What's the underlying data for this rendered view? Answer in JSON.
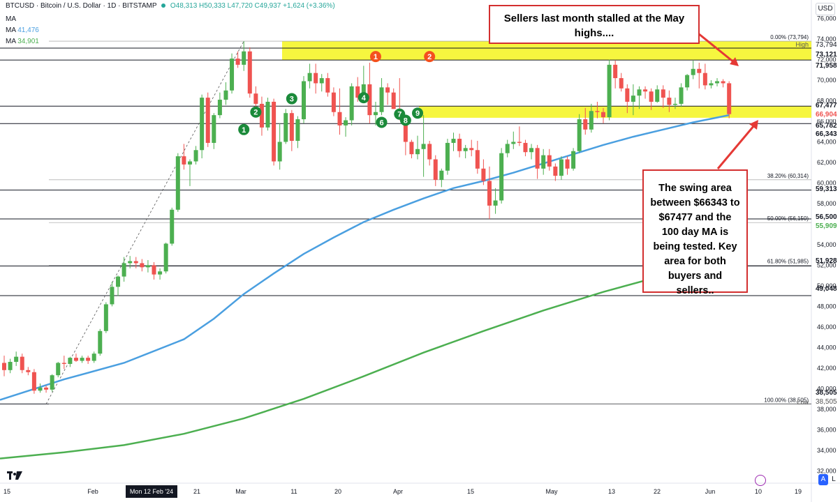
{
  "header": {
    "symbol_line": "BTCUSD · Bitcoin / U.S. Dollar · 1D · BITSTAMP",
    "ohlc": "O48,313 H50,333 L47,720 C49,937 +1,624 (+3.36%)",
    "ma_line": "MA",
    "ma1_label": "MA",
    "ma1_value": "41,476",
    "ma2_label": "MA",
    "ma2_value": "34,901",
    "currency": "USD"
  },
  "annotations": {
    "top_box": "Sellers last month stalled at the May highs....",
    "swing_box": "The swing area between $66343 to $67477 and the 100 day MA is being tested.  Key area for both buyers and sellers.."
  },
  "colors": {
    "up": "#4caf50",
    "down": "#ef5350",
    "ma100": "#4a9fe0",
    "ma200": "#4caf50",
    "zone": "#f5f52a",
    "arrow": "#e53935"
  },
  "chart_data": {
    "type": "candlestick",
    "x_ticks": [
      "15",
      "Feb",
      "Mon 12 Feb '24",
      "21",
      "Mar",
      "11",
      "20",
      "Apr",
      "15",
      "May",
      "13",
      "22",
      "Jun",
      "10",
      "19"
    ],
    "y_ticks": [
      "76,000",
      "74,000",
      "72,000",
      "70,000",
      "68,000",
      "66,000",
      "64,000",
      "62,000",
      "60,000",
      "58,000",
      "56,000",
      "54,000",
      "52,000",
      "50,000",
      "48,000",
      "46,000",
      "44,000",
      "42,000",
      "40,000",
      "38,000",
      "36,000",
      "34,000",
      "32,000"
    ],
    "ylim": [
      30800,
      77800
    ],
    "price_levels": [
      {
        "label": "73,121",
        "value": 73121
      },
      {
        "label": "71,958",
        "value": 71958
      },
      {
        "label": "67,477",
        "value": 67477
      },
      {
        "label": "66,904",
        "value": 66904
      },
      {
        "label": "65,782",
        "value": 65782
      },
      {
        "label": "66,343",
        "value": 66343
      },
      {
        "label": "59,313",
        "value": 59313
      },
      {
        "label": "56,500",
        "value": 56500
      },
      {
        "label": "55,909",
        "value": 55909
      },
      {
        "label": "51,928",
        "value": 51928
      },
      {
        "label": "49,048",
        "value": 49048
      },
      {
        "label": "38,505",
        "value": 38505
      },
      {
        "label": "73,794",
        "value": 73794
      },
      {
        "label": "38,505",
        "value": 38505
      }
    ],
    "high_label": "High",
    "low_label": "Low",
    "fib_levels": [
      {
        "label": "0.00% (73,794)",
        "value": 73794
      },
      {
        "label": "38.20% (60,314)",
        "value": 60314
      },
      {
        "label": "50.00% (56,150)",
        "value": 56150
      },
      {
        "label": "61.80% (51,985)",
        "value": 51985
      },
      {
        "label": "100.00% (38,505)",
        "value": 38505
      }
    ],
    "zones": [
      {
        "from_day": 25,
        "to_day": 49,
        "low": 71958,
        "high": 73794
      },
      {
        "from_day": 31,
        "to_day": 60,
        "low": 66343,
        "high": 67477
      }
    ],
    "markers": [
      {
        "label": "1",
        "day": 40,
        "value": 65200,
        "color": "green"
      },
      {
        "label": "2",
        "day": 42,
        "value": 66900,
        "color": "green"
      },
      {
        "label": "3",
        "day": 48,
        "value": 68200,
        "color": "green"
      },
      {
        "label": "4",
        "day": 60,
        "value": 68300,
        "color": "green"
      },
      {
        "label": "1",
        "day": 62,
        "value": 72300,
        "color": "red"
      },
      {
        "label": "6",
        "day": 63,
        "value": 65900,
        "color": "green"
      },
      {
        "label": "7",
        "day": 66,
        "value": 66700,
        "color": "green"
      },
      {
        "label": "8",
        "day": 67,
        "value": 66100,
        "color": "green"
      },
      {
        "label": "9",
        "day": 69,
        "value": 66800,
        "color": "green"
      },
      {
        "label": "2",
        "day": 71,
        "value": 72300,
        "color": "red"
      }
    ],
    "ohlc": [
      [
        42500,
        43200,
        41200,
        41800
      ],
      [
        41800,
        42900,
        41500,
        42600
      ],
      [
        42600,
        43600,
        42200,
        43100
      ],
      [
        43100,
        43400,
        41500,
        41800
      ],
      [
        41800,
        42100,
        41300,
        41600
      ],
      [
        41600,
        41900,
        39500,
        39800
      ],
      [
        39800,
        40500,
        39600,
        40100
      ],
      [
        40100,
        40300,
        39600,
        39900
      ],
      [
        39900,
        41400,
        39700,
        41300
      ],
      [
        41300,
        42600,
        41100,
        42500
      ],
      [
        42500,
        43200,
        41900,
        42400
      ],
      [
        42400,
        43100,
        42100,
        43000
      ],
      [
        43000,
        43400,
        42600,
        42700
      ],
      [
        42700,
        43200,
        42500,
        43000
      ],
      [
        43000,
        43200,
        42400,
        42700
      ],
      [
        42700,
        43600,
        42500,
        43400
      ],
      [
        43400,
        45800,
        43200,
        45600
      ],
      [
        45600,
        48400,
        45400,
        48200
      ],
      [
        48200,
        50400,
        48000,
        49900
      ],
      [
        49900,
        51000,
        49000,
        50900
      ],
      [
        50900,
        52800,
        50400,
        52200
      ],
      [
        52200,
        52900,
        51700,
        52400
      ],
      [
        52400,
        52800,
        51700,
        52200
      ],
      [
        52200,
        52600,
        51400,
        51800
      ],
      [
        51800,
        52500,
        51300,
        52000
      ],
      [
        52000,
        52300,
        50600,
        51100
      ],
      [
        51100,
        51700,
        50600,
        51400
      ],
      [
        51400,
        54200,
        51200,
        54100
      ],
      [
        54100,
        57600,
        53900,
        57400
      ],
      [
        57400,
        62900,
        57200,
        62600
      ],
      [
        62600,
        63800,
        61300,
        61800
      ],
      [
        61800,
        62300,
        59700,
        62100
      ],
      [
        62100,
        63600,
        61800,
        63200
      ],
      [
        63200,
        68600,
        62400,
        68300
      ],
      [
        68300,
        68800,
        63500,
        63900
      ],
      [
        63900,
        66800,
        63300,
        66600
      ],
      [
        66600,
        68800,
        66300,
        68100
      ],
      [
        68100,
        69800,
        67600,
        69000
      ],
      [
        69000,
        72600,
        68700,
        72100
      ],
      [
        72100,
        72800,
        71200,
        71500
      ],
      [
        71500,
        73794,
        70900,
        72800
      ],
      [
        72800,
        73200,
        68300,
        68700
      ],
      [
        68700,
        69400,
        66500,
        67700
      ],
      [
        67700,
        68400,
        64600,
        65400
      ],
      [
        65400,
        68300,
        65100,
        67900
      ],
      [
        67900,
        68200,
        61700,
        62100
      ],
      [
        62100,
        65800,
        61300,
        64000
      ],
      [
        64000,
        67200,
        63800,
        66800
      ],
      [
        66800,
        67100,
        63100,
        64100
      ],
      [
        64100,
        66500,
        63400,
        66200
      ],
      [
        66200,
        70400,
        65800,
        69900
      ],
      [
        69900,
        71600,
        69200,
        70700
      ],
      [
        70700,
        71600,
        68700,
        69700
      ],
      [
        69700,
        70600,
        68900,
        70200
      ],
      [
        70200,
        70700,
        68400,
        68800
      ],
      [
        68800,
        69300,
        66500,
        66900
      ],
      [
        66900,
        69200,
        64700,
        65600
      ],
      [
        65600,
        66400,
        64500,
        66100
      ],
      [
        66100,
        69700,
        65600,
        69400
      ],
      [
        69400,
        70300,
        67900,
        68300
      ],
      [
        68300,
        71400,
        68000,
        69600
      ],
      [
        69600,
        71700,
        65800,
        66600
      ],
      [
        66600,
        67900,
        65600,
        66900
      ],
      [
        66900,
        70200,
        66600,
        69300
      ],
      [
        69300,
        69700,
        67600,
        68800
      ],
      [
        68800,
        69200,
        67200,
        67200
      ],
      [
        67200,
        70200,
        66100,
        66200
      ],
      [
        66200,
        66500,
        62700,
        64000
      ],
      [
        64000,
        64200,
        62400,
        62800
      ],
      [
        62800,
        64600,
        62300,
        63300
      ],
      [
        63300,
        66600,
        60600,
        63800
      ],
      [
        63800,
        64100,
        61700,
        62300
      ],
      [
        62300,
        62700,
        59700,
        60300
      ],
      [
        60300,
        61400,
        59600,
        61200
      ],
      [
        61200,
        64300,
        60800,
        63900
      ],
      [
        63900,
        64900,
        63100,
        64300
      ],
      [
        64300,
        64800,
        62500,
        63100
      ],
      [
        63100,
        63700,
        62400,
        63400
      ],
      [
        63400,
        64200,
        62600,
        63200
      ],
      [
        63200,
        64100,
        60900,
        61400
      ],
      [
        61400,
        62300,
        59800,
        60200
      ],
      [
        60200,
        61600,
        56500,
        57800
      ],
      [
        57800,
        59500,
        57000,
        58300
      ],
      [
        58300,
        63400,
        58000,
        62900
      ],
      [
        62900,
        64200,
        62500,
        63800
      ],
      [
        63800,
        65000,
        63300,
        64000
      ],
      [
        64000,
        65500,
        63600,
        63900
      ],
      [
        63900,
        64200,
        62600,
        63000
      ],
      [
        63000,
        63800,
        62300,
        63400
      ],
      [
        63400,
        63700,
        60400,
        61400
      ],
      [
        61400,
        63300,
        60800,
        62700
      ],
      [
        62700,
        63300,
        61200,
        61600
      ],
      [
        61600,
        61900,
        60200,
        60700
      ],
      [
        60700,
        62600,
        60300,
        62300
      ],
      [
        62300,
        62600,
        60800,
        61400
      ],
      [
        61400,
        63400,
        61200,
        63100
      ],
      [
        63100,
        66700,
        62900,
        66200
      ],
      [
        66200,
        67300,
        64700,
        65200
      ],
      [
        65200,
        67700,
        64900,
        67000
      ],
      [
        67000,
        67900,
        66300,
        66900
      ],
      [
        66900,
        67300,
        65800,
        66400
      ],
      [
        66400,
        72000,
        66100,
        71500
      ],
      [
        71500,
        71900,
        69200,
        70200
      ],
      [
        70200,
        70700,
        68900,
        69200
      ],
      [
        69200,
        69600,
        66800,
        67900
      ],
      [
        67900,
        69600,
        66600,
        68500
      ],
      [
        68500,
        69400,
        67200,
        69100
      ],
      [
        69100,
        69400,
        68200,
        68900
      ],
      [
        68900,
        69200,
        67100,
        67900
      ],
      [
        67900,
        69500,
        67800,
        69100
      ],
      [
        69100,
        69500,
        67300,
        68300
      ],
      [
        68300,
        69000,
        66900,
        67600
      ],
      [
        67600,
        68300,
        67200,
        67700
      ],
      [
        67700,
        69700,
        67400,
        69300
      ],
      [
        69300,
        70600,
        69000,
        70500
      ],
      [
        70500,
        71900,
        70100,
        71100
      ],
      [
        71100,
        71700,
        69200,
        70700
      ],
      [
        70700,
        71600,
        69100,
        69500
      ],
      [
        69500,
        70000,
        69200,
        69700
      ],
      [
        69700,
        70200,
        69400,
        69900
      ],
      [
        69900,
        70100,
        69300,
        69700
      ],
      [
        69700,
        69900,
        66300,
        66700
      ]
    ],
    "ma100": [
      [
        0,
        38900
      ],
      [
        10,
        40900
      ],
      [
        20,
        42500
      ],
      [
        30,
        44800
      ],
      [
        35,
        46800
      ],
      [
        40,
        49200
      ],
      [
        45,
        51200
      ],
      [
        50,
        53100
      ],
      [
        55,
        54700
      ],
      [
        60,
        56200
      ],
      [
        65,
        57400
      ],
      [
        70,
        58500
      ],
      [
        75,
        59500
      ],
      [
        80,
        60200
      ],
      [
        85,
        61000
      ],
      [
        90,
        61900
      ],
      [
        95,
        62800
      ],
      [
        100,
        63700
      ],
      [
        105,
        64500
      ],
      [
        110,
        65200
      ],
      [
        115,
        65900
      ],
      [
        121,
        66600
      ]
    ],
    "ma200": [
      [
        0,
        33200
      ],
      [
        10,
        33800
      ],
      [
        20,
        34500
      ],
      [
        30,
        35600
      ],
      [
        40,
        37100
      ],
      [
        50,
        39000
      ],
      [
        60,
        41200
      ],
      [
        70,
        43500
      ],
      [
        80,
        45600
      ],
      [
        90,
        47600
      ],
      [
        100,
        49400
      ],
      [
        110,
        51000
      ],
      [
        115,
        52000
      ],
      [
        121,
        55900
      ]
    ]
  }
}
